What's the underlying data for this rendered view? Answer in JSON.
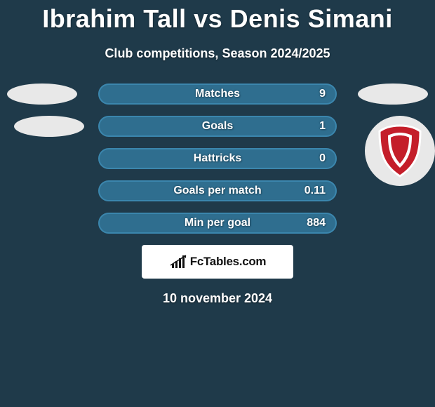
{
  "background_color": "#1f3a4a",
  "title": "Ibrahim Tall vs Denis Simani",
  "title_color": "#ffffff",
  "title_fontsize": 36,
  "subtitle": "Club competitions, Season 2024/2025",
  "subtitle_color": "#ffffff",
  "player_left": {
    "ellipse1_fill": "#e8e8e8",
    "ellipse2_fill": "#e8e8e8"
  },
  "player_right": {
    "ellipse1_fill": "#e8e8e8",
    "club_badge_bg": "#e8e8e8",
    "club_badge_shield_fill": "#c41e2a",
    "club_badge_shield_stroke": "#ffffff"
  },
  "stats": {
    "pill_fill": "#2f6e8f",
    "pill_border": "#3b86ad",
    "text_color": "#ffffff",
    "rows": [
      {
        "label": "Matches",
        "value": "9"
      },
      {
        "label": "Goals",
        "value": "1"
      },
      {
        "label": "Hattricks",
        "value": "0"
      },
      {
        "label": "Goals per match",
        "value": "0.11"
      },
      {
        "label": "Min per goal",
        "value": "884"
      }
    ]
  },
  "brand": {
    "box_bg": "#ffffff",
    "text": "FcTables.com",
    "icon_color": "#111111"
  },
  "date": "10 november 2024"
}
